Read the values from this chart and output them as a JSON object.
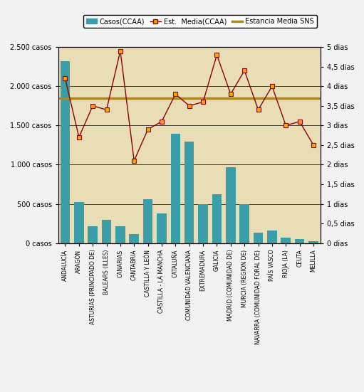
{
  "categories": [
    "ANDALUCÍA",
    "ARAGÓN",
    "ASTURIAS (PRINCIPADO DE)",
    "BALEARS (ILLES)",
    "CANARIAS",
    "CANTABRIA",
    "CASTILLA Y LEÓN",
    "CASTILLA - LA MANCHA",
    "CATALUÑA",
    "COMUNIDAD VALENCIANA",
    "EXTREMADURA",
    "GALICIA",
    "MADRID (COMUNIDAD DE)",
    "MURCIA (REGION DE)",
    "NAVARRA (COMUNIDAD FORAL DE)",
    "PAÍS VASCO",
    "RIOJA (LA)",
    "CEUTA",
    "MELILLA"
  ],
  "casos": [
    2320,
    520,
    210,
    300,
    210,
    110,
    560,
    380,
    1390,
    1290,
    500,
    620,
    970,
    500,
    130,
    160,
    70,
    50,
    20
  ],
  "estancia_media": [
    4.2,
    2.7,
    3.5,
    3.4,
    4.9,
    2.1,
    2.9,
    3.1,
    3.8,
    3.5,
    3.6,
    4.8,
    3.8,
    4.4,
    3.4,
    4.0,
    3.0,
    3.1,
    2.5
  ],
  "estancia_media_sns": 3.7,
  "bar_color": "#3a9da8",
  "line_color": "#8B0000",
  "marker_color": "#FFA500",
  "marker_edge_color": "#8B0000",
  "sns_line_color": "#B8860B",
  "background_color": "#e8ddb5",
  "fig_background": "#f2f2f2",
  "ylim_left": [
    0,
    2500
  ],
  "ylim_right": [
    0,
    5
  ],
  "yticks_left": [
    0,
    500,
    1000,
    1500,
    2000,
    2500
  ],
  "ytick_labels_left": [
    "0 casos",
    "500 casos",
    "1.000 casos",
    "1.500 casos",
    "2.000 casos",
    "2.500 casos"
  ],
  "yticks_right": [
    0,
    0.5,
    1.0,
    1.5,
    2.0,
    2.5,
    3.0,
    3.5,
    4.0,
    4.5,
    5.0
  ],
  "ytick_labels_right": [
    "0 dias",
    "0,5 dias",
    "1 dias",
    "1,5 dias",
    "2 dias",
    "2,5 dias",
    "3 dias",
    "3,5 dias",
    "4 dias",
    "4,5 dias",
    "5 dias"
  ],
  "legend_labels": [
    "Casos(CCAA)",
    "Est.  Media(CCAA)",
    "Estancia Media SNS"
  ],
  "fig_width": 5.11,
  "fig_height": 5.51
}
